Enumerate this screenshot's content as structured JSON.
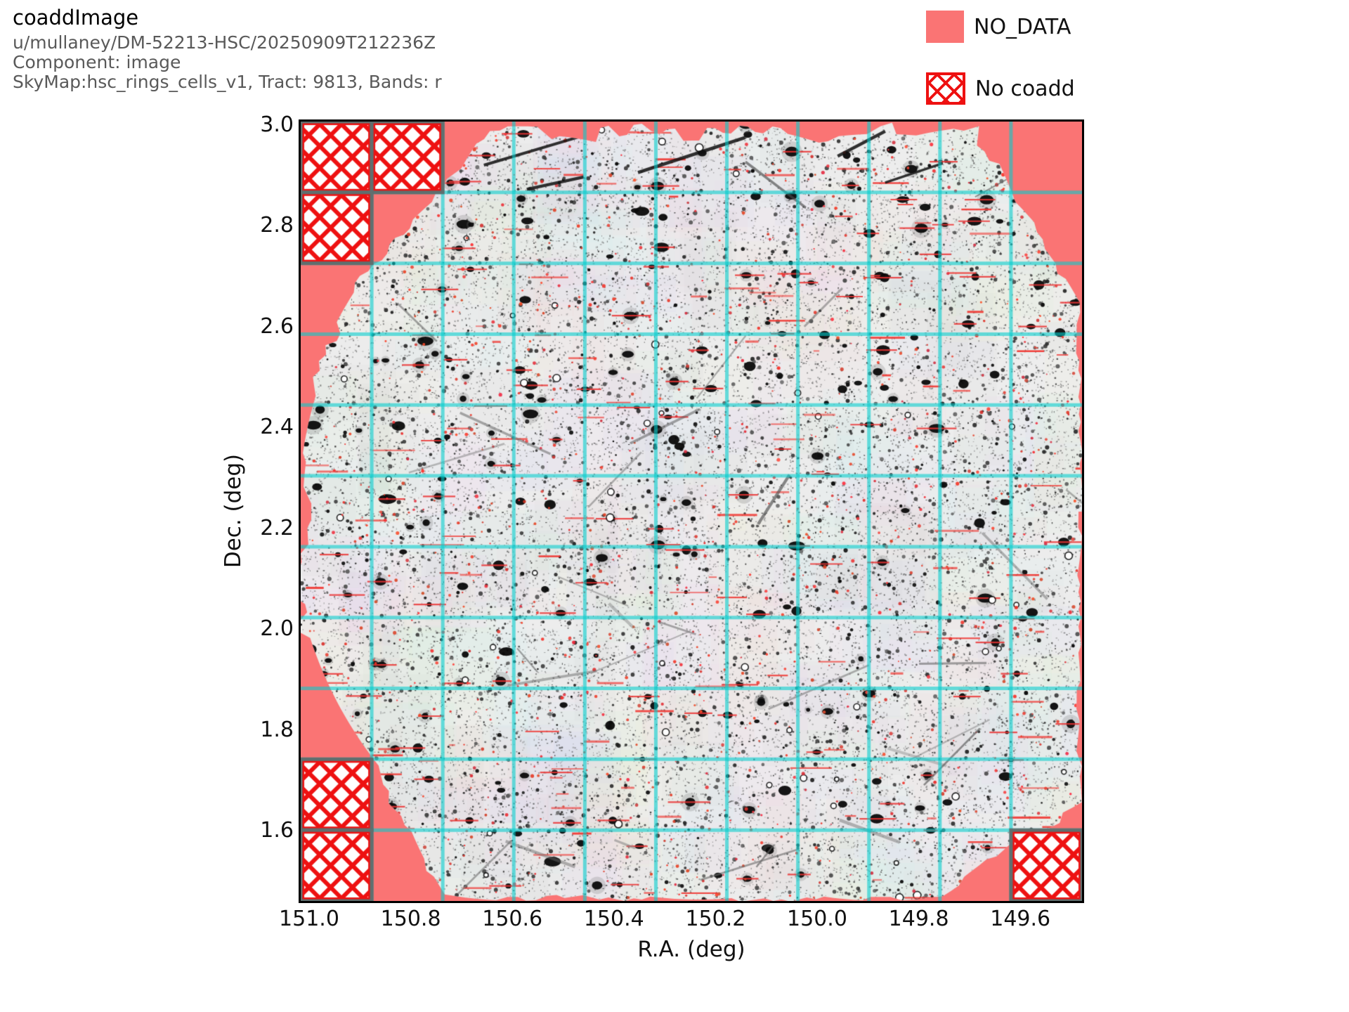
{
  "header": {
    "title": "coaddImage",
    "subtitle_lines": [
      "u/mullaney/DM-52213-HSC/20250909T212236Z",
      "Component: image",
      "SkyMap:hsc_rings_cells_v1, Tract: 9813, Bands: r"
    ]
  },
  "legend": {
    "items": [
      {
        "label": "NO_DATA",
        "swatch": "filled-square",
        "color": "#FA7474"
      },
      {
        "label": "No coadd",
        "swatch": "red-crosshatch-square",
        "color": "#EE1111"
      }
    ]
  },
  "axes": {
    "xlabel": "R.A. (deg)",
    "ylabel": "Dec. (deg)",
    "x_ticks": [
      "151.0",
      "150.8",
      "150.6",
      "150.4",
      "150.2",
      "150.0",
      "149.8",
      "149.6"
    ],
    "y_ticks": [
      "3.0",
      "2.8",
      "2.6",
      "2.4",
      "2.2",
      "2.0",
      "1.8",
      "1.6"
    ]
  },
  "chart_data": {
    "type": "heatmap",
    "title": "coaddImage",
    "description": "Grayscale coadded sky image of HSC tract 9813 (r band) shown in equatorial coordinates; cyan lines mark the skymap patch grid (11x11 patches); pink NO_DATA mask fills the plot outside the roughly circular survey footprint; red-crosshatched patches have no coadd.",
    "xlabel": "R.A. (deg)",
    "ylabel": "Dec. (deg)",
    "x_range": [
      151.02,
      149.48
    ],
    "x_direction": "decreasing",
    "y_range": [
      1.455,
      3.005
    ],
    "x_tick_values": [
      151.0,
      150.8,
      150.6,
      150.4,
      150.2,
      150.0,
      149.8,
      149.6
    ],
    "y_tick_values": [
      3.0,
      2.8,
      2.6,
      2.4,
      2.2,
      2.0,
      1.8,
      1.6
    ],
    "grid": {
      "columns": 11,
      "rows": 11,
      "on": true,
      "color": "#2FC9C9"
    },
    "legend_position": "top-right-outside",
    "no_coadd_patches_grid_cells_col_row": [
      [
        0,
        0
      ],
      [
        1,
        0
      ],
      [
        0,
        1
      ],
      [
        0,
        9
      ],
      [
        0,
        10
      ],
      [
        10,
        10
      ]
    ],
    "footprint": {
      "shape": "irregular-circle",
      "center_ra": 150.23,
      "center_dec": 2.23,
      "radius_deg": 0.86
    }
  },
  "colors": {
    "no_data_pink": "#FA7474",
    "hatch_red": "#EE1111",
    "grid_teal": "#2FC9C9",
    "patch_border_gray": "#5F6F6F",
    "plot_border": "#000000",
    "subtitle_gray": "#595959",
    "image_base_gray": "#ECECEC"
  }
}
